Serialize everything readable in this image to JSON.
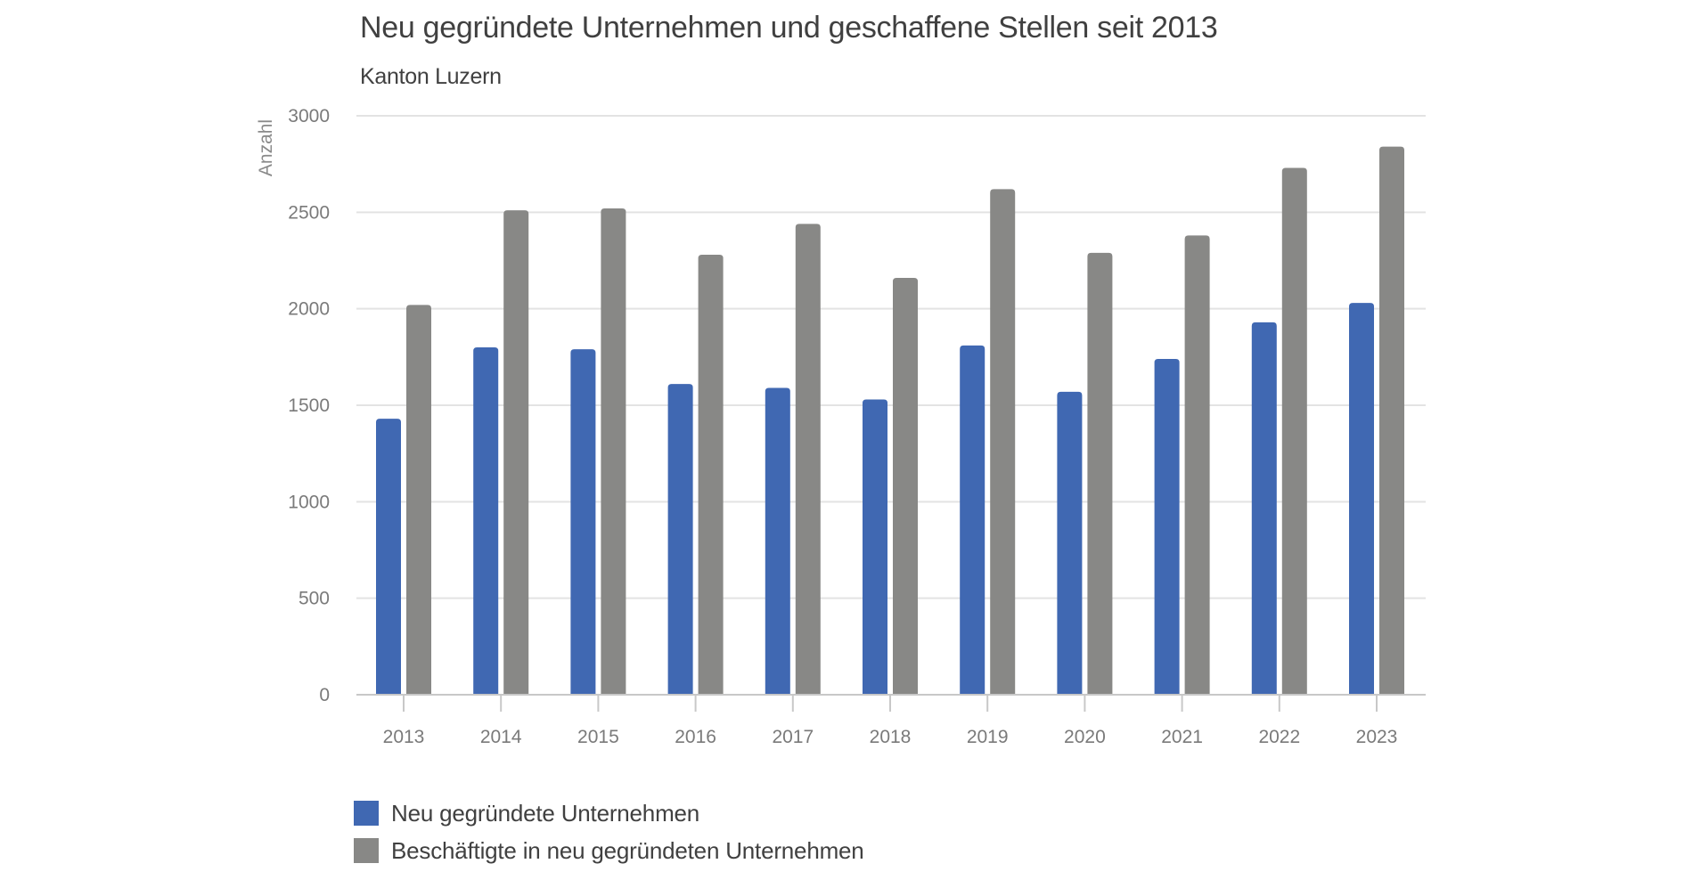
{
  "chart_data": {
    "type": "bar",
    "title": "Neu gegründete Unternehmen und geschaffene Stellen seit 2013",
    "subtitle": "Kanton Luzern",
    "xlabel": "",
    "ylabel": "Anzahl",
    "ylim": [
      0,
      3000
    ],
    "yticks": [
      0,
      500,
      1000,
      1500,
      2000,
      2500,
      3000
    ],
    "grid": true,
    "legend_position": "bottom-left",
    "categories": [
      "2013",
      "2014",
      "2015",
      "2016",
      "2017",
      "2018",
      "2019",
      "2020",
      "2021",
      "2022",
      "2023"
    ],
    "series": [
      {
        "name": "Neu gegründete Unternehmen",
        "color": "#4068b2",
        "values": [
          1430,
          1800,
          1790,
          1610,
          1590,
          1530,
          1810,
          1570,
          1740,
          1930,
          2030
        ]
      },
      {
        "name": "Beschäftigte in neu gegründeten Unternehmen",
        "color": "#888886",
        "values": [
          2020,
          2510,
          2520,
          2280,
          2440,
          2160,
          2620,
          2290,
          2380,
          2730,
          2840
        ]
      }
    ]
  }
}
